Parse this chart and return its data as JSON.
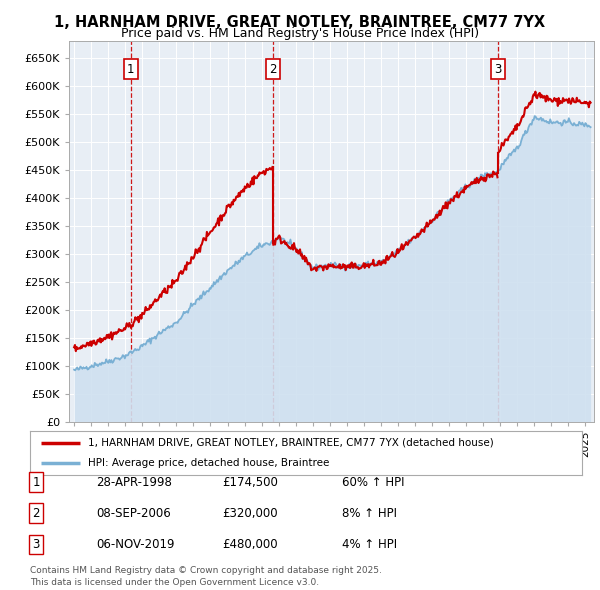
{
  "title": "1, HARNHAM DRIVE, GREAT NOTLEY, BRAINTREE, CM77 7YX",
  "subtitle": "Price paid vs. HM Land Registry's House Price Index (HPI)",
  "ylabel_ticks": [
    "£0",
    "£50K",
    "£100K",
    "£150K",
    "£200K",
    "£250K",
    "£300K",
    "£350K",
    "£400K",
    "£450K",
    "£500K",
    "£550K",
    "£600K",
    "£650K"
  ],
  "ytick_values": [
    0,
    50000,
    100000,
    150000,
    200000,
    250000,
    300000,
    350000,
    400000,
    450000,
    500000,
    550000,
    600000,
    650000
  ],
  "ylim": [
    0,
    680000
  ],
  "xlim_start": 1994.7,
  "xlim_end": 2025.5,
  "sales": [
    {
      "num": 1,
      "date_str": "28-APR-1998",
      "year": 1998.32,
      "price": 174500,
      "pct": "60%",
      "dir": "↑"
    },
    {
      "num": 2,
      "date_str": "08-SEP-2006",
      "year": 2006.68,
      "price": 320000,
      "pct": "8%",
      "dir": "↑"
    },
    {
      "num": 3,
      "date_str": "06-NOV-2019",
      "year": 2019.85,
      "price": 480000,
      "pct": "4%",
      "dir": "↑"
    }
  ],
  "property_line_color": "#cc0000",
  "hpi_line_color": "#7ab0d4",
  "hpi_fill_color": "#cfe0f0",
  "dashed_line_color": "#cc0000",
  "marker_box_color": "#cc0000",
  "background_color": "#ffffff",
  "plot_bg_color": "#e8eef5",
  "grid_color": "#ffffff",
  "legend_box_label": "1, HARNHAM DRIVE, GREAT NOTLEY, BRAINTREE, CM77 7YX (detached house)",
  "hpi_label": "HPI: Average price, detached house, Braintree",
  "footnote": "Contains HM Land Registry data © Crown copyright and database right 2025.\nThis data is licensed under the Open Government Licence v3.0.",
  "xticks": [
    1995,
    1996,
    1997,
    1998,
    1999,
    2000,
    2001,
    2002,
    2003,
    2004,
    2005,
    2006,
    2007,
    2008,
    2009,
    2010,
    2011,
    2012,
    2013,
    2014,
    2015,
    2016,
    2017,
    2018,
    2019,
    2020,
    2021,
    2022,
    2023,
    2024,
    2025
  ],
  "hpi_base_years": [
    1995,
    1996,
    1997,
    1998,
    1999,
    2000,
    2001,
    2002,
    2003,
    2004,
    2005,
    2006,
    2006.68,
    2007,
    2008,
    2009,
    2010,
    2011,
    2012,
    2013,
    2014,
    2015,
    2016,
    2017,
    2018,
    2019,
    2019.85,
    2020,
    2021,
    2022,
    2023,
    2024,
    2025
  ],
  "hpi_base_vals": [
    92000,
    100000,
    108000,
    118000,
    135000,
    158000,
    178000,
    210000,
    240000,
    270000,
    295000,
    315000,
    322000,
    330000,
    310000,
    275000,
    280000,
    278000,
    280000,
    285000,
    305000,
    330000,
    360000,
    395000,
    420000,
    440000,
    447000,
    455000,
    490000,
    545000,
    535000,
    535000,
    530000
  ],
  "sale1_year": 1998.32,
  "sale1_price": 174500,
  "sale2_year": 2006.68,
  "sale2_price": 320000,
  "sale3_year": 2019.85,
  "sale3_price": 480000
}
